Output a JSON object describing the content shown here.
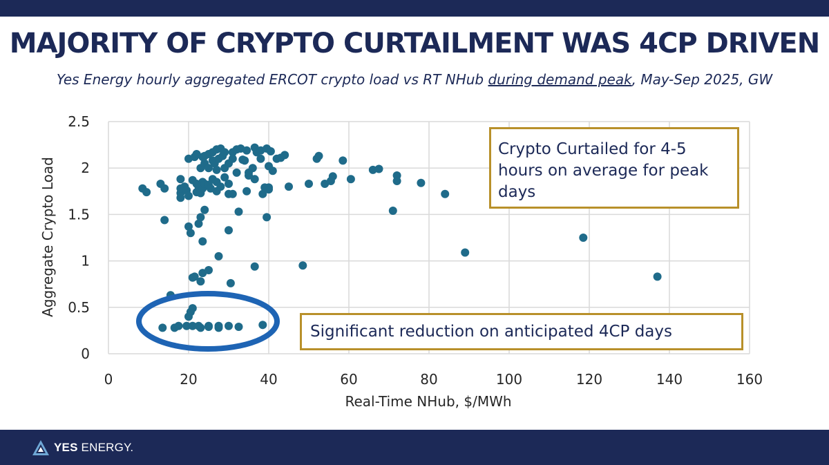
{
  "header": {
    "title": "MAJORITY OF CRYPTO CURTAILMENT WAS 4CP DRIVEN",
    "subtitle_before": "Yes Energy hourly aggregated ERCOT crypto load vs RT NHub ",
    "subtitle_underlined": "during demand peak",
    "subtitle_after": ", May-Sep 2025,  GW"
  },
  "annotations": {
    "curtailed_note": "Crypto Curtailed for 4-5 hours on average for peak days",
    "reduction_note": "Significant reduction on anticipated 4CP days"
  },
  "footer": {
    "brand_bold": "YES",
    "brand_rest": " ENERGY."
  },
  "colors": {
    "navy": "#1c2957",
    "point": "#1f6b8a",
    "gold_border": "#b8902a",
    "highlight_ellipse": "#1e64b4",
    "gridline": "#d9d9d9"
  },
  "chart_data": {
    "type": "scatter",
    "title": "",
    "xlabel": "Real-Time NHub, $/MWh",
    "ylabel": "Aggregate Crypto Load",
    "xlim": [
      0,
      160
    ],
    "ylim": [
      0,
      2.5
    ],
    "x_ticks": [
      0,
      20,
      40,
      60,
      80,
      100,
      120,
      140,
      160
    ],
    "y_ticks": [
      0,
      0.5,
      1,
      1.5,
      2,
      2.5
    ],
    "y_tick_labels": [
      "0",
      "0.5",
      "1",
      "1.5",
      "2",
      "2.5"
    ],
    "grid": true,
    "legend": "none",
    "series": [
      {
        "points": [
          [
            8.5,
            1.78
          ],
          [
            9.5,
            1.74
          ],
          [
            13,
            1.83
          ],
          [
            14,
            1.78
          ],
          [
            14,
            1.44
          ],
          [
            15.5,
            0.63
          ],
          [
            13.5,
            0.28
          ],
          [
            16.5,
            0.28
          ],
          [
            17.5,
            0.3
          ],
          [
            18,
            1.68
          ],
          [
            18,
            1.73
          ],
          [
            18,
            1.78
          ],
          [
            18,
            1.88
          ],
          [
            19,
            1.8
          ],
          [
            19.5,
            1.76
          ],
          [
            20,
            1.7
          ],
          [
            20,
            1.37
          ],
          [
            20.5,
            1.3
          ],
          [
            20,
            2.1
          ],
          [
            20,
            0.4
          ],
          [
            20.5,
            0.45
          ],
          [
            21,
            0.49
          ],
          [
            19.5,
            0.3
          ],
          [
            21,
            0.3
          ],
          [
            21,
            0.82
          ],
          [
            21.5,
            0.83
          ],
          [
            21,
            1.87
          ],
          [
            21.5,
            2.12
          ],
          [
            22,
            2.15
          ],
          [
            22,
            1.83
          ],
          [
            22,
            1.74
          ],
          [
            22.5,
            1.8
          ],
          [
            22.5,
            1.4
          ],
          [
            23,
            1.47
          ],
          [
            23,
            1.73
          ],
          [
            23,
            2.0
          ],
          [
            23.5,
            2.12
          ],
          [
            23.5,
            1.78
          ],
          [
            23.5,
            1.85
          ],
          [
            22.5,
            0.3
          ],
          [
            23,
            0.28
          ],
          [
            23,
            0.78
          ],
          [
            23.5,
            0.87
          ],
          [
            23.5,
            1.21
          ],
          [
            24,
            1.55
          ],
          [
            24,
            1.83
          ],
          [
            24,
            2.05
          ],
          [
            24,
            2.13
          ],
          [
            25,
            2.0
          ],
          [
            25,
            1.82
          ],
          [
            25,
            2.15
          ],
          [
            25,
            0.9
          ],
          [
            25,
            0.3
          ],
          [
            25,
            0.29
          ],
          [
            25.5,
            1.78
          ],
          [
            26,
            2.08
          ],
          [
            26,
            2.17
          ],
          [
            26,
            1.88
          ],
          [
            26.5,
            2.05
          ],
          [
            27,
            1.75
          ],
          [
            27,
            1.85
          ],
          [
            27,
            2.2
          ],
          [
            27,
            1.98
          ],
          [
            27.5,
            2.1
          ],
          [
            27.5,
            1.05
          ],
          [
            27.5,
            0.3
          ],
          [
            27.5,
            0.28
          ],
          [
            28,
            1.8
          ],
          [
            28,
            2.21
          ],
          [
            28.5,
            2.13
          ],
          [
            29,
            1.9
          ],
          [
            29,
            2.17
          ],
          [
            29,
            2.0
          ],
          [
            30,
            2.05
          ],
          [
            30,
            1.83
          ],
          [
            30,
            1.72
          ],
          [
            30,
            1.33
          ],
          [
            30.5,
            0.76
          ],
          [
            30,
            0.3
          ],
          [
            31,
            1.72
          ],
          [
            31,
            2.17
          ],
          [
            31,
            2.1
          ],
          [
            32,
            1.95
          ],
          [
            32,
            2.2
          ],
          [
            32.5,
            1.53
          ],
          [
            32.5,
            0.29
          ],
          [
            33,
            2.21
          ],
          [
            33.5,
            2.09
          ],
          [
            34,
            2.08
          ],
          [
            34.5,
            2.19
          ],
          [
            34.5,
            1.75
          ],
          [
            35,
            1.92
          ],
          [
            35,
            1.95
          ],
          [
            36,
            2.0
          ],
          [
            36.5,
            2.22
          ],
          [
            36.5,
            1.88
          ],
          [
            36.5,
            0.94
          ],
          [
            37,
            2.17
          ],
          [
            38,
            2.19
          ],
          [
            38,
            2.1
          ],
          [
            38.5,
            1.72
          ],
          [
            38.5,
            0.31
          ],
          [
            39,
            1.79
          ],
          [
            39.5,
            1.47
          ],
          [
            39.5,
            2.21
          ],
          [
            40,
            1.77
          ],
          [
            40,
            2.02
          ],
          [
            40,
            1.79
          ],
          [
            40.5,
            2.18
          ],
          [
            41,
            1.97
          ],
          [
            42,
            2.1
          ],
          [
            43,
            2.11
          ],
          [
            44,
            2.14
          ],
          [
            45,
            1.8
          ],
          [
            48.5,
            0.95
          ],
          [
            50,
            1.83
          ],
          [
            52,
            2.1
          ],
          [
            52.5,
            2.13
          ],
          [
            54,
            1.83
          ],
          [
            55.5,
            1.86
          ],
          [
            56,
            1.91
          ],
          [
            58.5,
            2.08
          ],
          [
            60.5,
            1.88
          ],
          [
            66,
            1.98
          ],
          [
            67.5,
            1.99
          ],
          [
            71,
            1.54
          ],
          [
            72,
            1.92
          ],
          [
            72,
            1.86
          ],
          [
            78,
            1.84
          ],
          [
            84,
            1.72
          ],
          [
            89,
            1.09
          ],
          [
            118.5,
            1.25
          ],
          [
            137,
            0.83
          ]
        ]
      }
    ]
  }
}
